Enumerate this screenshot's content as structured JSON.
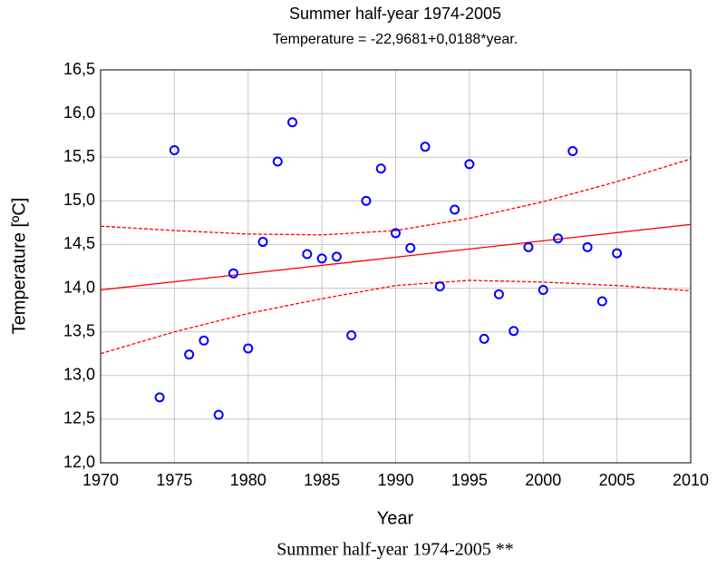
{
  "chart_data": {
    "type": "scatter",
    "title": "Summer half-year 1974-2005",
    "subtitle": "Temperature = -22,9681+0,0188*year.",
    "x_label": "Year",
    "y_label": "Temperature [ºC]",
    "caption": "Summer half-year 1974-2005 **",
    "xlim": [
      1970,
      2010
    ],
    "xticks": [
      1970,
      1975,
      1980,
      1985,
      1990,
      1995,
      2000,
      2005,
      2010
    ],
    "ylim": [
      12.0,
      16.5
    ],
    "yticks": [
      {
        "value": 12.0,
        "label": "12,0"
      },
      {
        "value": 12.5,
        "label": "12,5"
      },
      {
        "value": 13.0,
        "label": "13,0"
      },
      {
        "value": 13.5,
        "label": "13,5"
      },
      {
        "value": 14.0,
        "label": "14,0"
      },
      {
        "value": 14.5,
        "label": "14,5"
      },
      {
        "value": 15.0,
        "label": "15,0"
      },
      {
        "value": 15.5,
        "label": "15,5"
      },
      {
        "value": 16.0,
        "label": "16,0"
      },
      {
        "value": 16.5,
        "label": "16,5"
      }
    ],
    "grid": true,
    "series": [
      {
        "type": "scatter",
        "color": "#0000ff",
        "x": [
          1974,
          1975,
          1976,
          1977,
          1978,
          1979,
          1980,
          1981,
          1982,
          1983,
          1984,
          1985,
          1986,
          1987,
          1988,
          1989,
          1990,
          1991,
          1992,
          1993,
          1994,
          1995,
          1996,
          1997,
          1998,
          1999,
          2000,
          2001,
          2002,
          2003,
          2004,
          2005
        ],
        "values": [
          12.75,
          15.58,
          13.24,
          13.4,
          12.55,
          14.17,
          13.31,
          14.53,
          15.45,
          15.9,
          14.39,
          14.34,
          14.36,
          13.46,
          15.0,
          15.37,
          14.63,
          14.46,
          15.62,
          14.02,
          14.9,
          15.42,
          13.42,
          13.93,
          13.51,
          14.47,
          13.98,
          14.57,
          15.57,
          14.47,
          13.85,
          14.4
        ]
      },
      {
        "type": "line",
        "color": "#ff0000",
        "x": [
          1970,
          2010
        ],
        "values": [
          13.98,
          14.73
        ]
      },
      {
        "type": "dashed",
        "color": "#ff0000",
        "x": [
          1970,
          1975,
          1980,
          1985,
          1990,
          1995,
          2000,
          2005,
          2010
        ],
        "values": [
          14.71,
          14.66,
          14.62,
          14.61,
          14.66,
          14.8,
          14.99,
          15.22,
          15.48
        ]
      },
      {
        "type": "dashed",
        "color": "#ff0000",
        "x": [
          1970,
          1975,
          1980,
          1985,
          1990,
          1995,
          2000,
          2005,
          2010
        ],
        "values": [
          13.25,
          13.5,
          13.71,
          13.88,
          14.03,
          14.09,
          14.07,
          14.03,
          13.97
        ]
      }
    ]
  }
}
